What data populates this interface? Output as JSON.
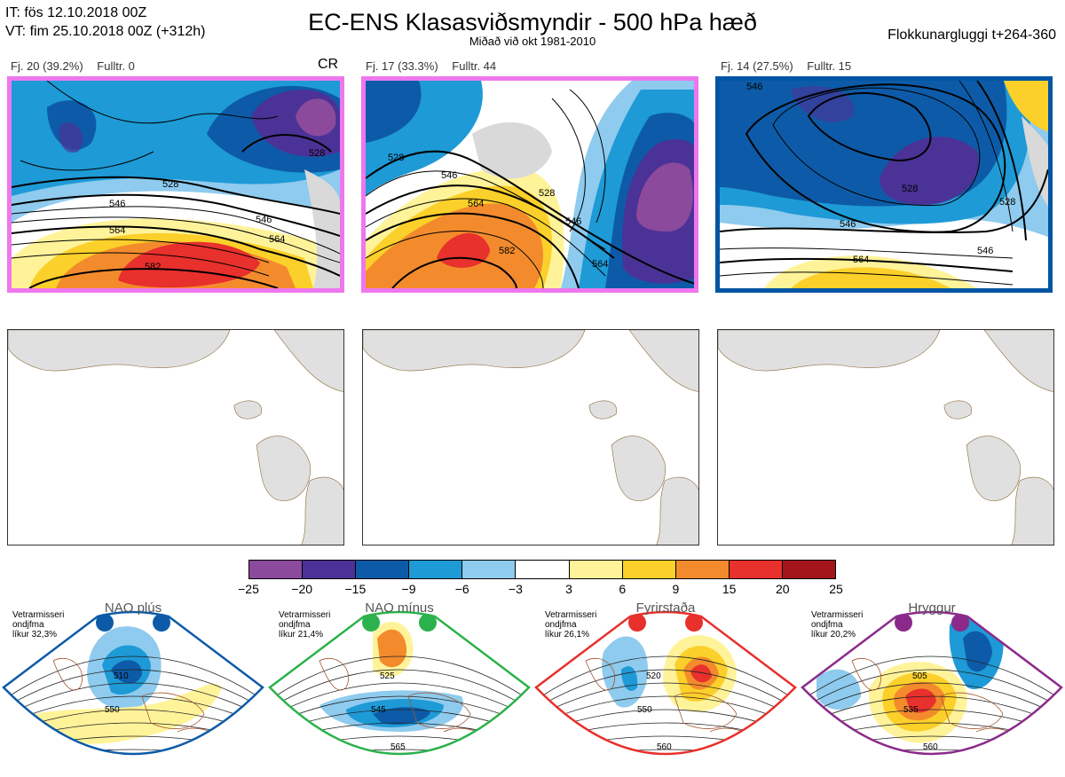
{
  "header": {
    "it_line": "IT: fös 12.10.2018 00Z",
    "vt_line": "VT: fim 25.10.2018 00Z  (+312h)",
    "title": "EC-ENS Klasasviðsmyndir - 500 hPa hæð",
    "subtitle": "Miðað við okt 1981-2010",
    "window": "Flokkunargluggi t+264-360"
  },
  "clusters": [
    {
      "count": "Fj. 20 (39.2%)",
      "control": "Fulltr. 0",
      "tag": "CR",
      "frame_color": "#ee77ee",
      "contour_labels": [
        "528",
        "546",
        "546",
        "564",
        "564",
        "582",
        "528"
      ]
    },
    {
      "count": "Fj. 17 (33.3%)",
      "control": "Fulltr. 44",
      "tag": "",
      "frame_color": "#ee77ee",
      "contour_labels": [
        "528",
        "546",
        "564",
        "582",
        "528",
        "546",
        "564"
      ]
    },
    {
      "count": "Fj. 14 (27.5%)",
      "control": "Fulltr. 15",
      "tag": "",
      "frame_color": "#0055a4",
      "contour_labels": [
        "546",
        "528",
        "528",
        "546",
        "564",
        "546"
      ]
    }
  ],
  "colorbar": {
    "ticks": [
      "−25",
      "−20",
      "−15",
      "−9",
      "−6",
      "−3",
      "3",
      "6",
      "9",
      "15",
      "20",
      "25"
    ],
    "colors": [
      "#8b4a9c",
      "#4b3296",
      "#0d5ba8",
      "#1e9ad6",
      "#8ecbee",
      "#ffffff",
      "#fff39a",
      "#fcd02a",
      "#f38b2d",
      "#e8302c",
      "#a3151b"
    ]
  },
  "regimes": [
    {
      "name": "NAO plús",
      "note": [
        "Vetrarmisseri",
        "ondjfma",
        "líkur 32,3%"
      ],
      "color": "#0d5ba8",
      "labels": [
        "510",
        "550"
      ]
    },
    {
      "name": "NAO mínus",
      "note": [
        "Vetrarmisseri",
        "ondjfma",
        "líkur 21,4%"
      ],
      "color": "#2bb24c",
      "labels": [
        "525",
        "545",
        "565"
      ]
    },
    {
      "name": "Fyrirstaða",
      "note": [
        "Vetrarmisseri",
        "ondjfma",
        "líkur 26,1%"
      ],
      "color": "#e8302c",
      "labels": [
        "520",
        "550",
        "560"
      ]
    },
    {
      "name": "Hryggur",
      "note": [
        "Vetrarmisseri",
        "ondjfma",
        "líkur 20,2%"
      ],
      "color": "#8b2a8a",
      "labels": [
        "505",
        "535",
        "560"
      ]
    }
  ]
}
